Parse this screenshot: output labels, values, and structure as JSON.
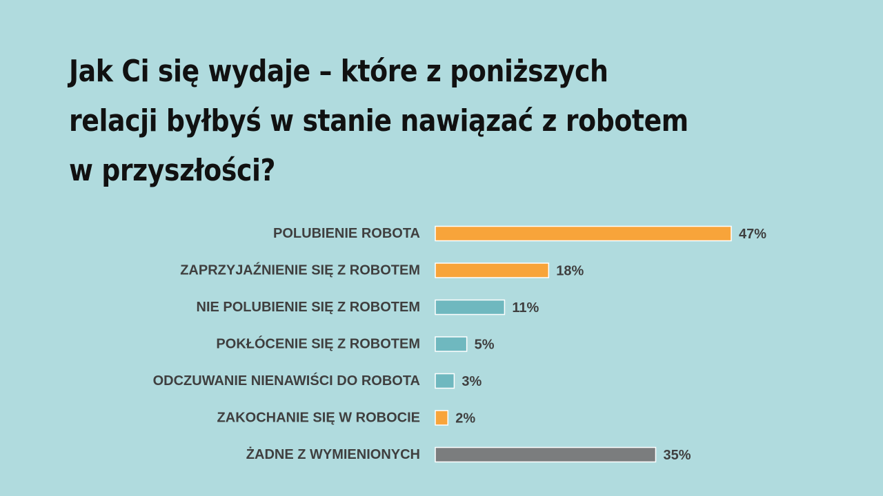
{
  "title_lines": [
    "Jak Ci się wydaje – które z poniższych",
    "relacji byłbyś w stanie nawiązać z robotem",
    "w przyszłości?"
  ],
  "colors": {
    "background": "#b0dbde",
    "orange": "#f8a43a",
    "teal": "#6fb8bf",
    "gray": "#7b7d7e"
  },
  "chart_data": {
    "type": "bar",
    "orientation": "horizontal",
    "title": "Jak Ci się wydaje – które z poniższych relacji byłbyś w stanie nawiązać z robotem w przyszłości?",
    "categories": [
      "POLUBIENIE ROBOTA",
      "ZAPRZYJAŹNIENIE SIĘ Z ROBOTEM",
      "NIE POLUBIENIE SIĘ Z ROBOTEM",
      "POKŁÓCENIE SIĘ Z ROBOTEM",
      "ODCZUWANIE NIENAWIŚCI DO ROBOTA",
      "ZAKOCHANIE SIĘ W ROBOCIE",
      "ŻADNE Z WYMIENIONYCH"
    ],
    "values": [
      47,
      18,
      11,
      5,
      3,
      2,
      35
    ],
    "value_labels": [
      "47%",
      "18%",
      "11%",
      "5%",
      "3%",
      "2%",
      "35%"
    ],
    "bar_colors": [
      "orange",
      "orange",
      "teal",
      "teal",
      "teal",
      "orange",
      "gray"
    ],
    "xlim": [
      0,
      47
    ],
    "grid": false,
    "legend": "none",
    "unit": "%"
  }
}
